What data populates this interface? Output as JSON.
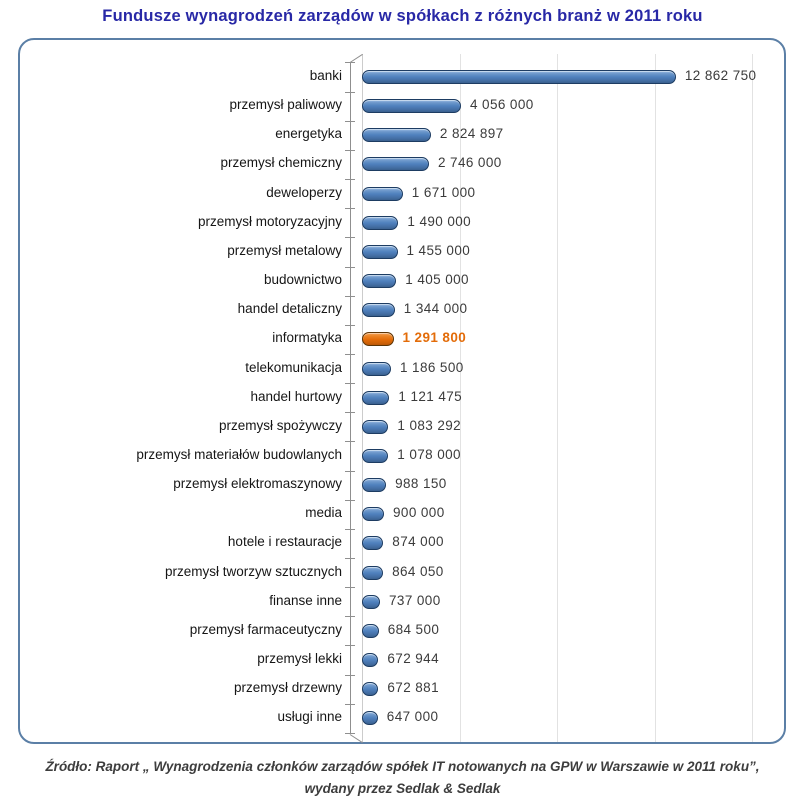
{
  "title": "Fundusze wynagrodzeń zarządów w spółkach z różnych branż w 2011 roku",
  "source": {
    "line1": "Źródło: Raport „ Wynagrodzenia członków zarządów spółek IT notowanych na GPW w Warszawie w 2011 roku”,",
    "line2": "wydany przez Sedlak & Sedlak"
  },
  "colors": {
    "title_text": "#2828A6",
    "frame_border": "#5B7FA6",
    "bar_fill": "#4F81BD",
    "bar_border": "#1D3C62",
    "highlight_fill": "#E36C09",
    "highlight_border": "#5C3405",
    "value_text": "#3B3B3B",
    "category_text": "#161616",
    "gridline": "#E2E2E2"
  },
  "chart_data": {
    "type": "bar",
    "orientation": "horizontal",
    "title": "Fundusze wynagrodzeń zarządów w spółkach z różnych branż w 2011 roku",
    "xlabel": "",
    "ylabel": "",
    "legend": false,
    "grid": true,
    "xlim": [
      0,
      17400000
    ],
    "gridlines": [
      4000000,
      8000000,
      12000000,
      16000000
    ],
    "gridline_interval": 4000000,
    "highlight_index": 9,
    "categories": [
      "banki",
      "przemysł paliwowy",
      "energetyka",
      "przemysł chemiczny",
      "deweloperzy",
      "przemysł motoryzacyjny",
      "przemysł metalowy",
      "budownictwo",
      "handel detaliczny",
      "informatyka",
      "telekomunikacja",
      "handel hurtowy",
      "przemysł spożywczy",
      "przemysł materiałów budowlanych",
      "przemysł elektromaszynowy",
      "media",
      "hotele i restauracje",
      "przemysł tworzyw sztucznych",
      "finanse inne",
      "przemysł farmaceutyczny",
      "przemysł lekki",
      "przemysł drzewny",
      "usługi inne"
    ],
    "values": [
      12862750,
      4056000,
      2824897,
      2746000,
      1671000,
      1490000,
      1455000,
      1405000,
      1344000,
      1291800,
      1186500,
      1121475,
      1083292,
      1078000,
      988150,
      900000,
      874000,
      864050,
      737000,
      684500,
      672944,
      672881,
      647000
    ],
    "value_labels": [
      "12 862 750",
      "4 056 000",
      "2 824 897",
      "2 746 000",
      "1 671 000",
      "1 490 000",
      "1 455 000",
      "1 405 000",
      "1 344 000",
      "1 291 800",
      "1 186 500",
      "1 121 475",
      "1 083 292",
      "1 078 000",
      "988 150",
      "900 000",
      "874 000",
      "864 050",
      "737 000",
      "684 500",
      "672 944",
      "672 881",
      "647 000"
    ]
  }
}
